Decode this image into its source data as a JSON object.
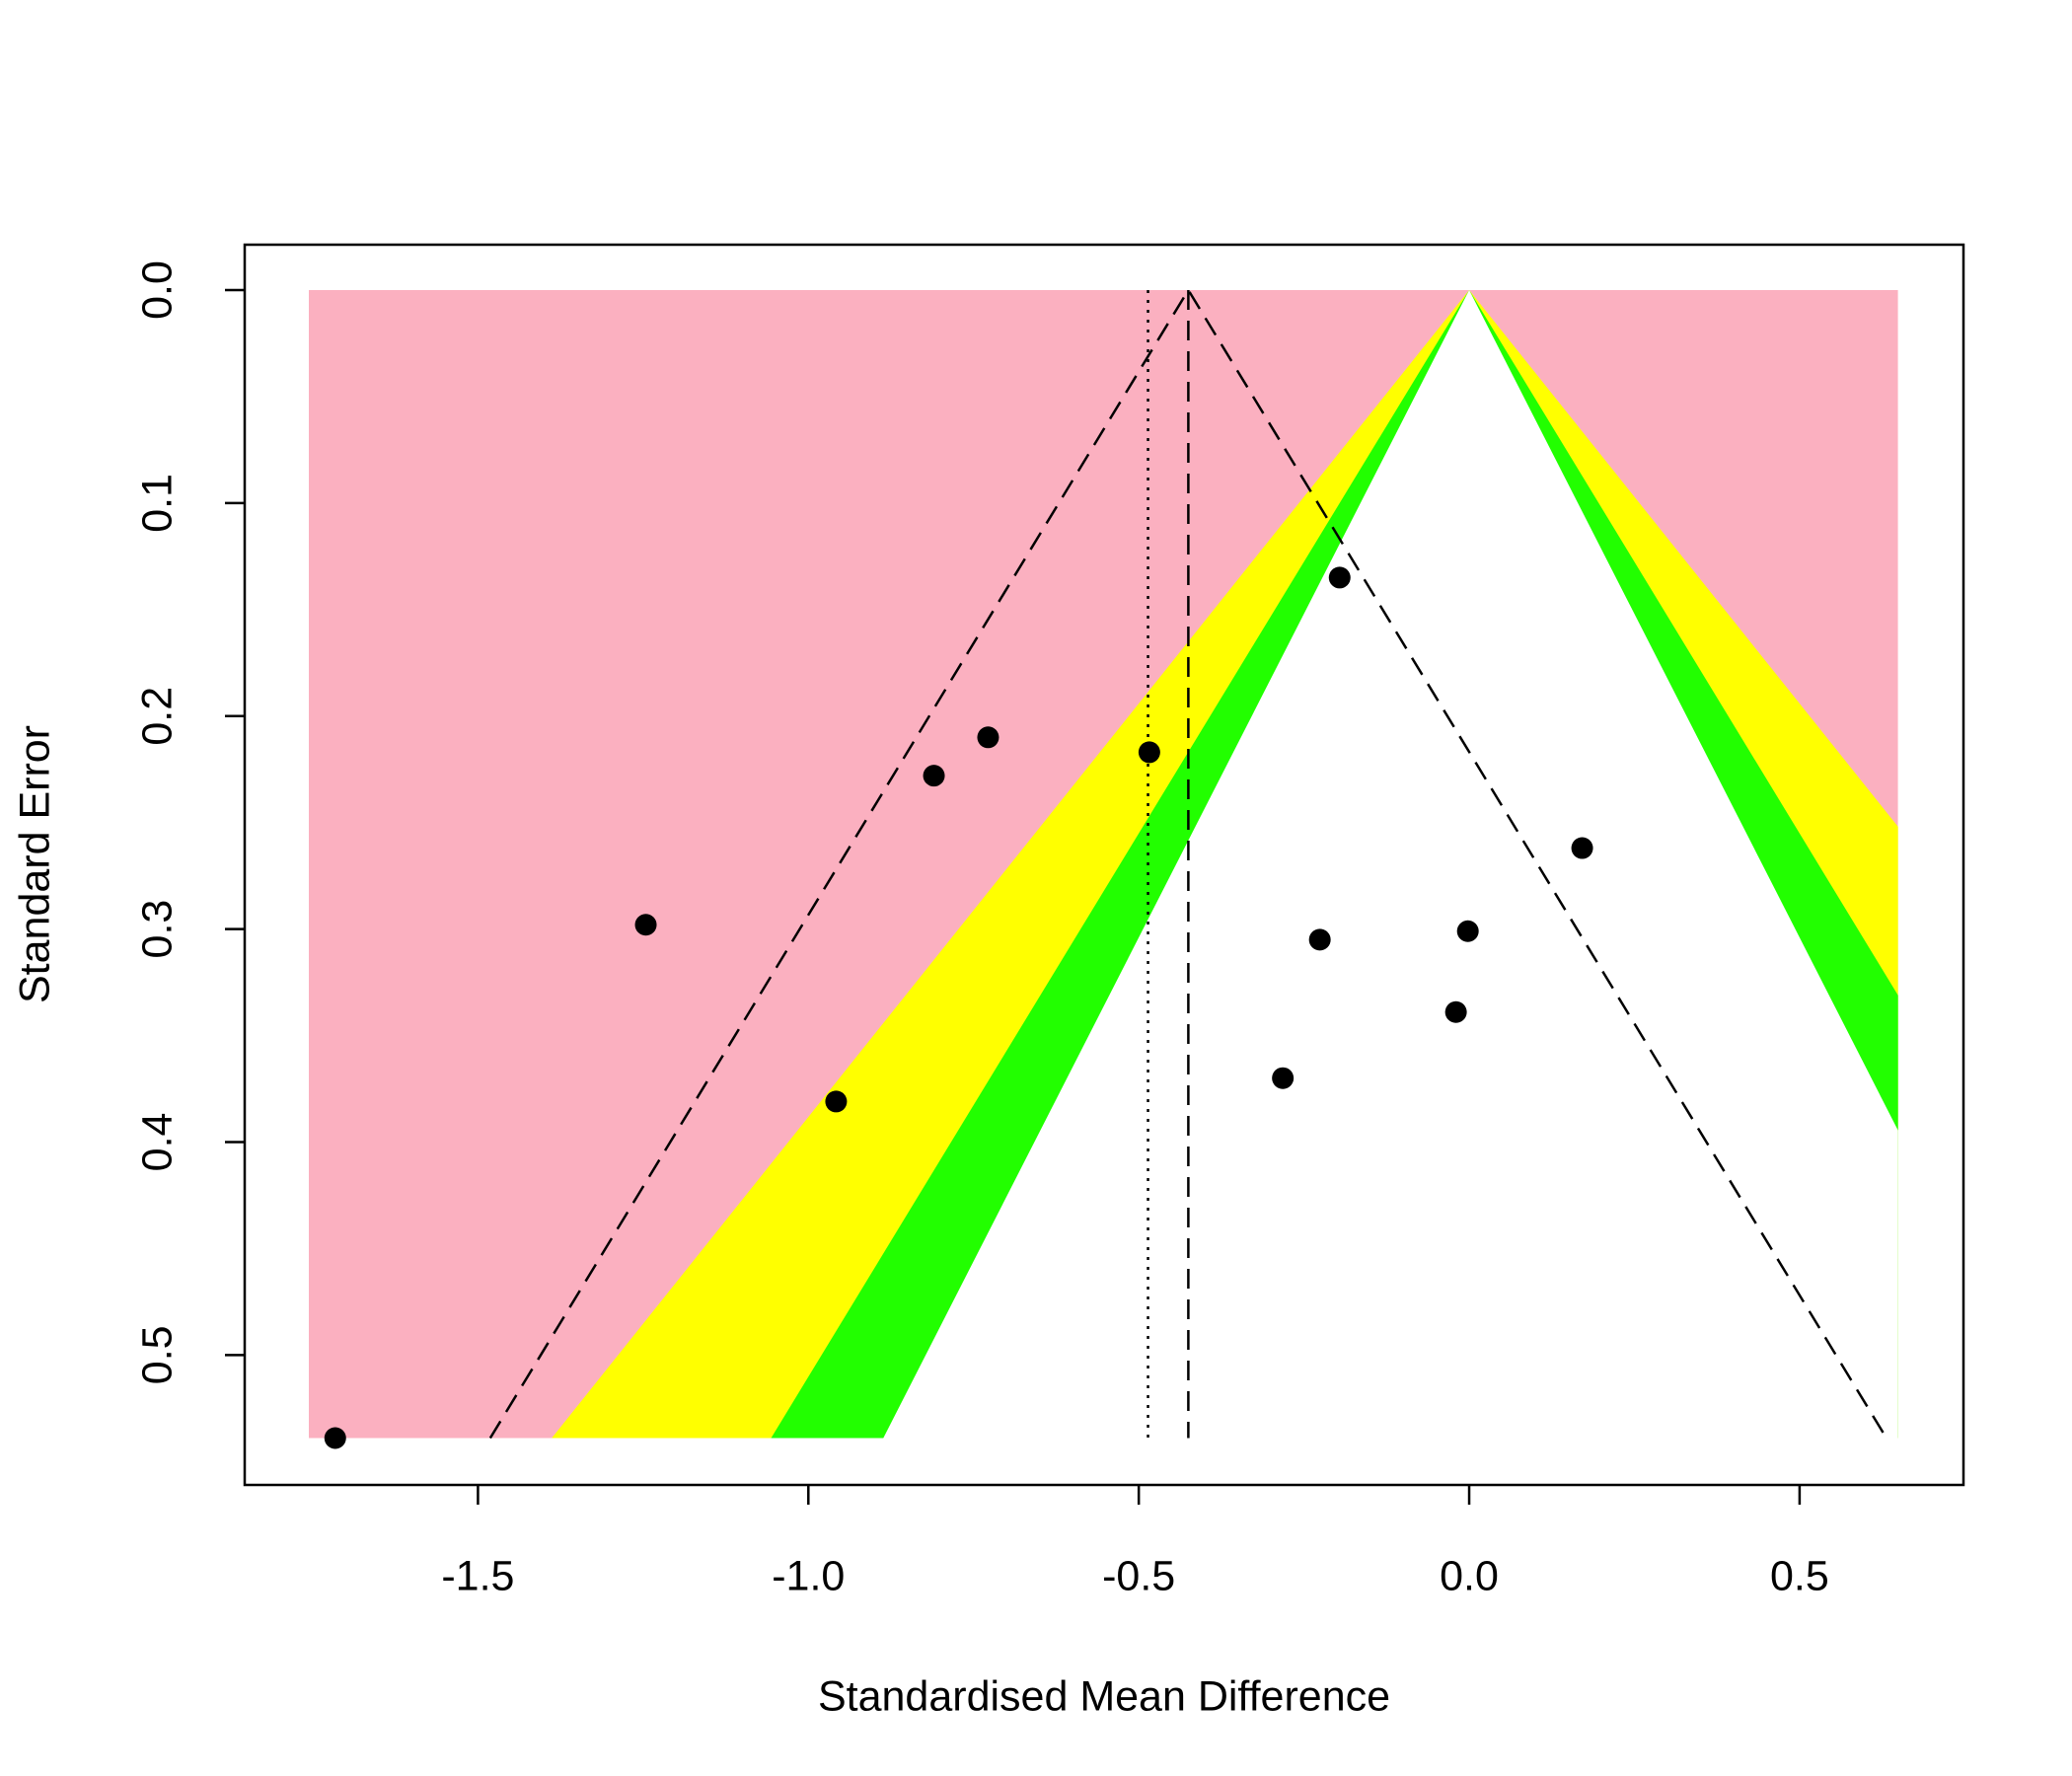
{
  "chart_data": {
    "type": "funnel",
    "xlabel": "Standardised Mean Difference",
    "ylabel": "Standard Error",
    "x": [
      -1.716,
      -1.246,
      -0.958,
      -0.81,
      -0.728,
      -0.484,
      -0.196,
      -0.226,
      -0.282,
      -0.02,
      -0.002,
      0.171
    ],
    "values": [
      0.539,
      0.298,
      0.381,
      0.228,
      0.21,
      0.217,
      0.135,
      0.305,
      0.37,
      0.339,
      0.301,
      0.262
    ],
    "point_color": "#000000",
    "xlim": [
      -1.853,
      0.748
    ],
    "ylim": [
      -0.0213,
      0.561
    ],
    "y_reversed": true,
    "xticks": [
      -1.5,
      {
        "value": -1,
        "label": "-1.0"
      },
      -0.5,
      {
        "value": 0,
        "label": "0.0"
      },
      0.5
    ],
    "yticks": [
      {
        "value": 0,
        "label": "0.0"
      },
      0.1,
      0.2,
      0.3,
      0.4,
      0.5
    ],
    "contour_center": 0,
    "contour_xlim": [
      -1.756,
      0.649
    ],
    "contour_levels": [
      0.9,
      0.95,
      0.99
    ],
    "contour_colors": [
      "#ffffff",
      "#22ff00",
      "#ffff00",
      "#fbb0c0"
    ],
    "fixed_estimate": -0.425,
    "random_estimate": -0.486,
    "funnel_level": 0.95
  }
}
